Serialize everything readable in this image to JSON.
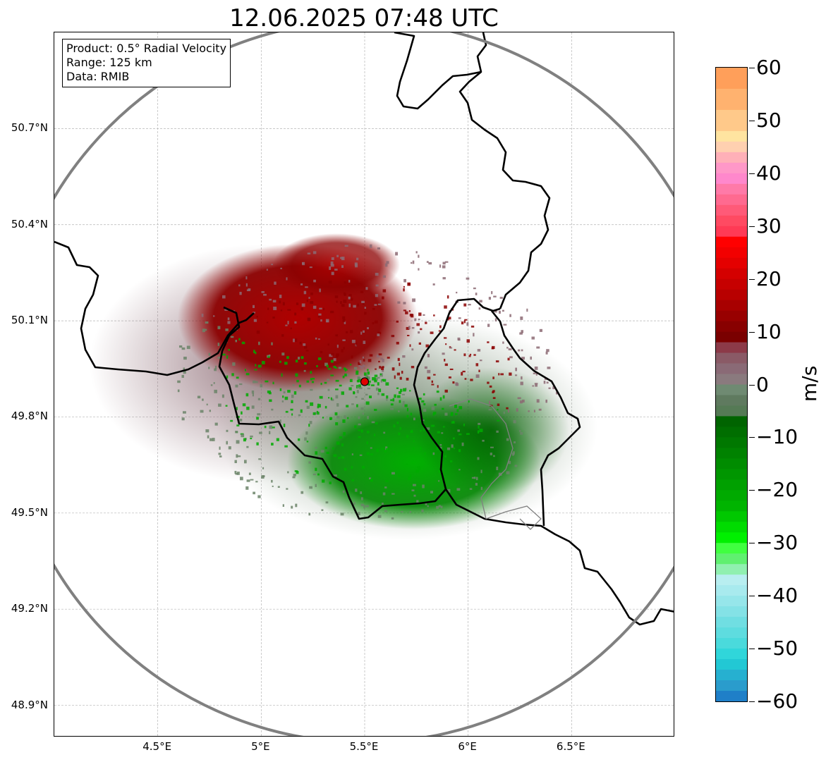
{
  "title": "12.06.2025 07:48 UTC",
  "info": {
    "product": "Product: 0.5° Radial Velocity",
    "range": "Range: 125 km",
    "source": "Data: RMIB"
  },
  "map": {
    "lon_range": [
      4.0,
      7.0
    ],
    "lat_range": [
      48.8,
      51.0
    ],
    "radar_site": {
      "lon": 5.5,
      "lat": 49.91
    },
    "range_ring_km": 125,
    "lat_ticks": [
      {
        "value": 50.7,
        "label": "50.7°N"
      },
      {
        "value": 50.4,
        "label": "50.4°N"
      },
      {
        "value": 50.1,
        "label": "50.1°N"
      },
      {
        "value": 49.8,
        "label": "49.8°N"
      },
      {
        "value": 49.5,
        "label": "49.5°N"
      },
      {
        "value": 49.2,
        "label": "49.2°N"
      },
      {
        "value": 48.9,
        "label": "48.9°N"
      }
    ],
    "lon_ticks": [
      {
        "value": 4.5,
        "label": "4.5°E"
      },
      {
        "value": 5.0,
        "label": "5°E"
      },
      {
        "value": 5.5,
        "label": "5.5°E"
      },
      {
        "value": 6.0,
        "label": "6°E"
      },
      {
        "value": 6.5,
        "label": "6.5°E"
      }
    ],
    "colors": {
      "outbound_strong": "#8b0000",
      "outbound_mid": "#b00000",
      "near_zero_pos": "#8c6a73",
      "near_zero_neg": "#6b8469",
      "inbound_mid": "#0a8a0a",
      "inbound_strong": "#00aa00",
      "border": "#000000",
      "ring": "#808080"
    }
  },
  "colorbar": {
    "unit": "m/s",
    "min": -60,
    "max": 60,
    "ticks": [
      {
        "value": 60,
        "label": "60"
      },
      {
        "value": 50,
        "label": "50"
      },
      {
        "value": 40,
        "label": "40"
      },
      {
        "value": 30,
        "label": "30"
      },
      {
        "value": 20,
        "label": "20"
      },
      {
        "value": 10,
        "label": "10"
      },
      {
        "value": 0,
        "label": "0"
      },
      {
        "value": -10,
        "label": "−10"
      },
      {
        "value": -20,
        "label": "−20"
      },
      {
        "value": -30,
        "label": "−30"
      },
      {
        "value": -40,
        "label": "−40"
      },
      {
        "value": -50,
        "label": "−50"
      },
      {
        "value": -60,
        "label": "−60"
      }
    ],
    "bands": [
      {
        "from": 56,
        "to": 60,
        "color": "#ff9f5a"
      },
      {
        "from": 52,
        "to": 56,
        "color": "#ffb26f"
      },
      {
        "from": 48,
        "to": 52,
        "color": "#ffc98a"
      },
      {
        "from": 46,
        "to": 48,
        "color": "#ffe4a0"
      },
      {
        "from": 44,
        "to": 46,
        "color": "#ffd0b0"
      },
      {
        "from": 42,
        "to": 44,
        "color": "#ffb0b8"
      },
      {
        "from": 40,
        "to": 42,
        "color": "#ff98c8"
      },
      {
        "from": 38,
        "to": 40,
        "color": "#ff88cc"
      },
      {
        "from": 36,
        "to": 38,
        "color": "#ff7aa8"
      },
      {
        "from": 34,
        "to": 36,
        "color": "#ff6a90"
      },
      {
        "from": 32,
        "to": 34,
        "color": "#ff5a78"
      },
      {
        "from": 30,
        "to": 32,
        "color": "#ff4a62"
      },
      {
        "from": 28,
        "to": 30,
        "color": "#ff3a55"
      },
      {
        "from": 26,
        "to": 28,
        "color": "#ff0000"
      },
      {
        "from": 24,
        "to": 26,
        "color": "#f20000"
      },
      {
        "from": 22,
        "to": 24,
        "color": "#e40000"
      },
      {
        "from": 20,
        "to": 22,
        "color": "#d40000"
      },
      {
        "from": 18,
        "to": 20,
        "color": "#c60000"
      },
      {
        "from": 16,
        "to": 18,
        "color": "#b80000"
      },
      {
        "from": 14,
        "to": 16,
        "color": "#a80000"
      },
      {
        "from": 12,
        "to": 14,
        "color": "#980000"
      },
      {
        "from": 10,
        "to": 12,
        "color": "#880000"
      },
      {
        "from": 8,
        "to": 10,
        "color": "#7a0000"
      },
      {
        "from": 6,
        "to": 8,
        "color": "#8c3a48"
      },
      {
        "from": 4,
        "to": 6,
        "color": "#8a5a66"
      },
      {
        "from": 2,
        "to": 4,
        "color": "#8a6a76"
      },
      {
        "from": 0,
        "to": 2,
        "color": "#8a7a7e"
      },
      {
        "from": -2,
        "to": 0,
        "color": "#6f8a72"
      },
      {
        "from": -4,
        "to": -2,
        "color": "#5f7a5f"
      },
      {
        "from": -6,
        "to": -4,
        "color": "#557a55"
      },
      {
        "from": -8,
        "to": -6,
        "color": "#006400"
      },
      {
        "from": -10,
        "to": -8,
        "color": "#006e00"
      },
      {
        "from": -12,
        "to": -10,
        "color": "#007800"
      },
      {
        "from": -14,
        "to": -12,
        "color": "#008200"
      },
      {
        "from": -16,
        "to": -14,
        "color": "#008c00"
      },
      {
        "from": -18,
        "to": -16,
        "color": "#009600"
      },
      {
        "from": -20,
        "to": -18,
        "color": "#00a000"
      },
      {
        "from": -22,
        "to": -20,
        "color": "#00aa00"
      },
      {
        "from": -24,
        "to": -22,
        "color": "#00b400"
      },
      {
        "from": -26,
        "to": -24,
        "color": "#00c800"
      },
      {
        "from": -28,
        "to": -26,
        "color": "#00dc00"
      },
      {
        "from": -30,
        "to": -28,
        "color": "#00f000"
      },
      {
        "from": -32,
        "to": -30,
        "color": "#40ff40"
      },
      {
        "from": -34,
        "to": -32,
        "color": "#60f070"
      },
      {
        "from": -36,
        "to": -34,
        "color": "#90f0b0"
      },
      {
        "from": -38,
        "to": -36,
        "color": "#b8eef0"
      },
      {
        "from": -40,
        "to": -38,
        "color": "#a8eaee"
      },
      {
        "from": -42,
        "to": -40,
        "color": "#96e6ea"
      },
      {
        "from": -44,
        "to": -42,
        "color": "#84e2e6"
      },
      {
        "from": -46,
        "to": -44,
        "color": "#70dee2"
      },
      {
        "from": -48,
        "to": -46,
        "color": "#5edcdf"
      },
      {
        "from": -50,
        "to": -48,
        "color": "#4adadc"
      },
      {
        "from": -52,
        "to": -50,
        "color": "#30d6da"
      },
      {
        "from": -54,
        "to": -52,
        "color": "#22c8d4"
      },
      {
        "from": -56,
        "to": -54,
        "color": "#26b0d0"
      },
      {
        "from": -58,
        "to": -56,
        "color": "#2a9ccc"
      },
      {
        "from": -60,
        "to": -58,
        "color": "#1f7fc8"
      }
    ]
  }
}
